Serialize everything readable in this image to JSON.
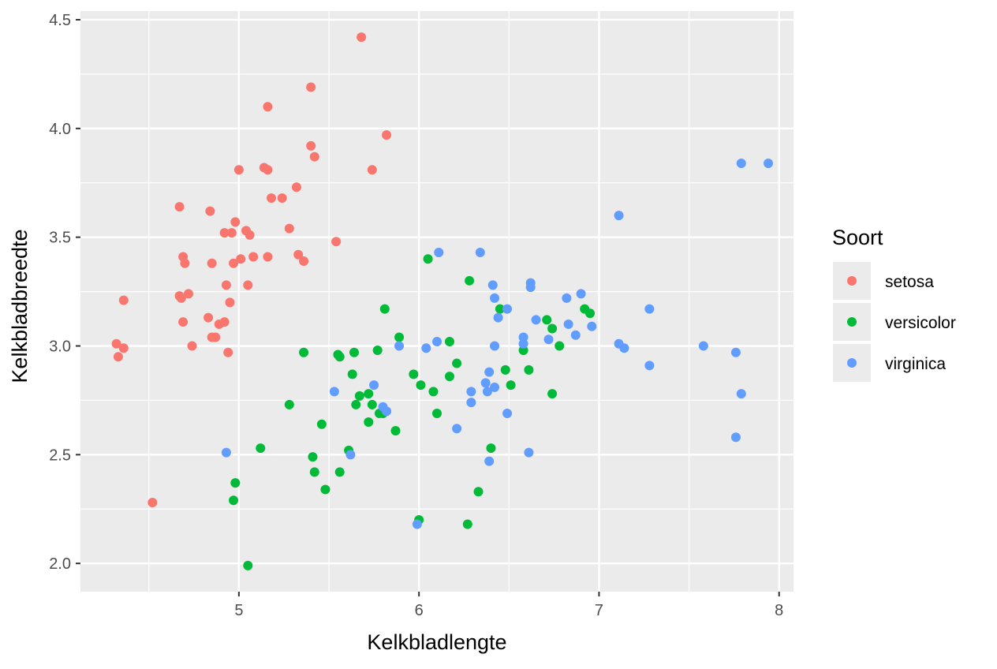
{
  "chart_data": {
    "type": "scatter",
    "title": "",
    "xlabel": "Kelkbladlengte",
    "ylabel": "Kelkbladbreedte",
    "xlim": [
      4.12,
      8.08
    ],
    "ylim": [
      1.87,
      4.54
    ],
    "x_ticks": [
      5,
      6,
      7,
      8
    ],
    "x_tick_labels": [
      "5",
      "6",
      "7",
      "8"
    ],
    "y_ticks": [
      2.0,
      2.5,
      3.0,
      3.5,
      4.0,
      4.5
    ],
    "y_tick_labels": [
      "2.0",
      "2.5",
      "3.0",
      "3.5",
      "4.0",
      "4.5"
    ],
    "grid": true,
    "background": "#ebebeb",
    "legend": {
      "title": "Soort",
      "placement": "right",
      "entries": [
        "setosa",
        "versicolor",
        "virginica"
      ]
    },
    "series": [
      {
        "name": "setosa",
        "color": "#f8766d",
        "points": [
          [
            5.68,
            4.42
          ],
          [
            5.4,
            4.19
          ],
          [
            5.16,
            4.1
          ],
          [
            5.82,
            3.97
          ],
          [
            5.4,
            3.92
          ],
          [
            5.42,
            3.87
          ],
          [
            5.14,
            3.82
          ],
          [
            5.16,
            3.81
          ],
          [
            5.0,
            3.81
          ],
          [
            5.74,
            3.81
          ],
          [
            5.32,
            3.73
          ],
          [
            5.18,
            3.68
          ],
          [
            5.24,
            3.68
          ],
          [
            4.67,
            3.64
          ],
          [
            4.84,
            3.62
          ],
          [
            4.98,
            3.57
          ],
          [
            5.28,
            3.54
          ],
          [
            5.04,
            3.53
          ],
          [
            4.92,
            3.52
          ],
          [
            4.96,
            3.52
          ],
          [
            5.06,
            3.51
          ],
          [
            5.54,
            3.48
          ],
          [
            5.33,
            3.42
          ],
          [
            5.16,
            3.41
          ],
          [
            4.69,
            3.41
          ],
          [
            5.08,
            3.41
          ],
          [
            5.01,
            3.4
          ],
          [
            5.36,
            3.39
          ],
          [
            4.7,
            3.38
          ],
          [
            4.97,
            3.38
          ],
          [
            4.85,
            3.38
          ],
          [
            4.93,
            3.28
          ],
          [
            5.05,
            3.28
          ],
          [
            4.72,
            3.24
          ],
          [
            4.67,
            3.23
          ],
          [
            4.68,
            3.22
          ],
          [
            4.36,
            3.21
          ],
          [
            4.95,
            3.2
          ],
          [
            4.83,
            3.13
          ],
          [
            4.92,
            3.11
          ],
          [
            4.69,
            3.11
          ],
          [
            4.89,
            3.1
          ],
          [
            4.85,
            3.04
          ],
          [
            4.87,
            3.04
          ],
          [
            4.32,
            3.01
          ],
          [
            4.74,
            3.0
          ],
          [
            4.36,
            2.99
          ],
          [
            4.94,
            2.97
          ],
          [
            4.33,
            2.95
          ],
          [
            4.52,
            2.28
          ]
        ]
      },
      {
        "name": "versicolor",
        "color": "#00ba38",
        "points": [
          [
            6.05,
            3.4
          ],
          [
            6.28,
            3.3
          ],
          [
            5.81,
            3.17
          ],
          [
            6.45,
            3.17
          ],
          [
            6.92,
            3.17
          ],
          [
            6.95,
            3.15
          ],
          [
            6.71,
            3.12
          ],
          [
            6.74,
            3.08
          ],
          [
            5.89,
            3.04
          ],
          [
            6.17,
            3.02
          ],
          [
            6.78,
            3.0
          ],
          [
            5.77,
            2.98
          ],
          [
            6.58,
            2.98
          ],
          [
            5.36,
            2.97
          ],
          [
            5.64,
            2.97
          ],
          [
            5.55,
            2.96
          ],
          [
            5.56,
            2.95
          ],
          [
            6.21,
            2.92
          ],
          [
            6.48,
            2.89
          ],
          [
            6.61,
            2.89
          ],
          [
            5.63,
            2.87
          ],
          [
            5.97,
            2.87
          ],
          [
            6.17,
            2.86
          ],
          [
            6.01,
            2.82
          ],
          [
            6.51,
            2.82
          ],
          [
            5.28,
            2.73
          ],
          [
            6.08,
            2.79
          ],
          [
            6.74,
            2.78
          ],
          [
            5.72,
            2.78
          ],
          [
            5.67,
            2.77
          ],
          [
            5.65,
            2.73
          ],
          [
            5.74,
            2.73
          ],
          [
            5.8,
            2.69
          ],
          [
            5.78,
            2.69
          ],
          [
            6.1,
            2.69
          ],
          [
            5.72,
            2.65
          ],
          [
            5.46,
            2.64
          ],
          [
            5.87,
            2.61
          ],
          [
            6.4,
            2.53
          ],
          [
            5.61,
            2.52
          ],
          [
            5.12,
            2.53
          ],
          [
            5.41,
            2.49
          ],
          [
            5.42,
            2.42
          ],
          [
            5.56,
            2.42
          ],
          [
            4.98,
            2.37
          ],
          [
            5.48,
            2.34
          ],
          [
            6.33,
            2.33
          ],
          [
            4.97,
            2.29
          ],
          [
            6.0,
            2.2
          ],
          [
            6.27,
            2.18
          ],
          [
            5.05,
            1.99
          ]
        ]
      },
      {
        "name": "virginica",
        "color": "#619cff",
        "points": [
          [
            7.79,
            3.84
          ],
          [
            7.94,
            3.84
          ],
          [
            7.11,
            3.6
          ],
          [
            6.11,
            3.43
          ],
          [
            6.34,
            3.43
          ],
          [
            6.62,
            3.29
          ],
          [
            6.41,
            3.28
          ],
          [
            6.62,
            3.27
          ],
          [
            6.9,
            3.24
          ],
          [
            6.42,
            3.22
          ],
          [
            6.82,
            3.22
          ],
          [
            6.49,
            3.17
          ],
          [
            7.28,
            3.17
          ],
          [
            6.44,
            3.13
          ],
          [
            6.65,
            3.12
          ],
          [
            6.83,
            3.1
          ],
          [
            6.96,
            3.09
          ],
          [
            6.87,
            3.05
          ],
          [
            6.58,
            3.04
          ],
          [
            6.72,
            3.03
          ],
          [
            6.1,
            3.02
          ],
          [
            6.58,
            3.01
          ],
          [
            7.11,
            3.01
          ],
          [
            5.89,
            3.0
          ],
          [
            6.42,
            3.0
          ],
          [
            6.04,
            2.99
          ],
          [
            7.14,
            2.99
          ],
          [
            7.58,
            3.0
          ],
          [
            7.76,
            2.97
          ],
          [
            6.39,
            2.88
          ],
          [
            7.28,
            2.91
          ],
          [
            6.37,
            2.83
          ],
          [
            6.42,
            2.81
          ],
          [
            6.38,
            2.79
          ],
          [
            5.75,
            2.82
          ],
          [
            5.53,
            2.79
          ],
          [
            6.29,
            2.79
          ],
          [
            7.79,
            2.78
          ],
          [
            6.29,
            2.74
          ],
          [
            5.8,
            2.72
          ],
          [
            5.82,
            2.7
          ],
          [
            6.49,
            2.69
          ],
          [
            6.21,
            2.62
          ],
          [
            4.93,
            2.51
          ],
          [
            5.62,
            2.5
          ],
          [
            6.61,
            2.51
          ],
          [
            7.76,
            2.58
          ],
          [
            6.39,
            2.47
          ],
          [
            5.99,
            2.18
          ]
        ]
      }
    ]
  }
}
